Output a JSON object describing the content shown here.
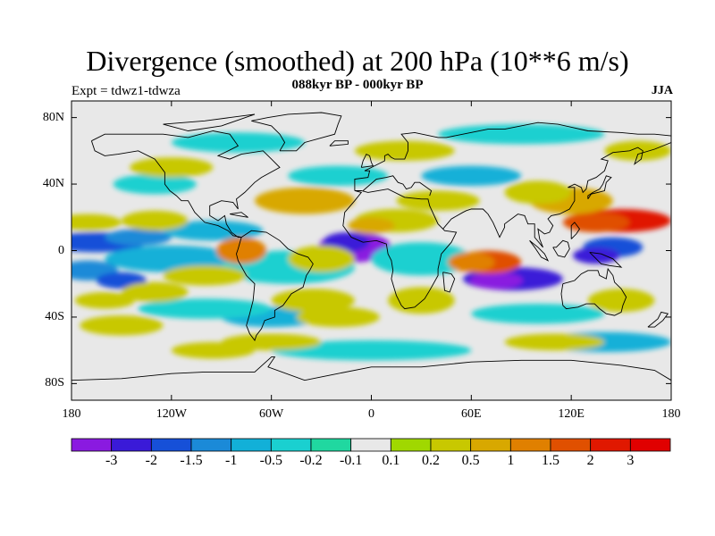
{
  "figure": {
    "title": "Divergence (smoothed) at 200 hPa (10**6 m/s)",
    "subtitle": "088kyr BP - 000kyr BP",
    "left_label": "Expt = tdwz1-tdwza",
    "right_label": "JJA"
  },
  "axes": {
    "lat_labels": [
      "80N",
      "40N",
      "0",
      "40S",
      "80S"
    ],
    "lat_values": [
      80,
      40,
      0,
      -40,
      -80
    ],
    "lon_labels": [
      "180",
      "120W",
      "60W",
      "0",
      "60E",
      "120E",
      "180"
    ],
    "lon_values": [
      -180,
      -120,
      -60,
      0,
      60,
      120,
      180
    ],
    "lat_range": [
      -90,
      90
    ],
    "lon_range": [
      -180,
      180
    ]
  },
  "colorbar": {
    "labels": [
      "-3",
      "-2",
      "-1.5",
      "-1",
      "-0.5",
      "-0.2",
      "-0.1",
      "0.1",
      "0.2",
      "0.5",
      "1",
      "1.5",
      "2",
      "3"
    ],
    "colors": [
      "#8a1ae0",
      "#3a1ad8",
      "#1650d8",
      "#1b8ad8",
      "#12b0d8",
      "#1ad0d0",
      "#20d8a0",
      "#e8e8e8",
      "#a0d800",
      "#c8c800",
      "#d8a800",
      "#e08000",
      "#e05000",
      "#e01800",
      "#e00000"
    ]
  },
  "map_features": {
    "background_color": "#e8e8e8",
    "coastline_color": "#000000"
  }
}
